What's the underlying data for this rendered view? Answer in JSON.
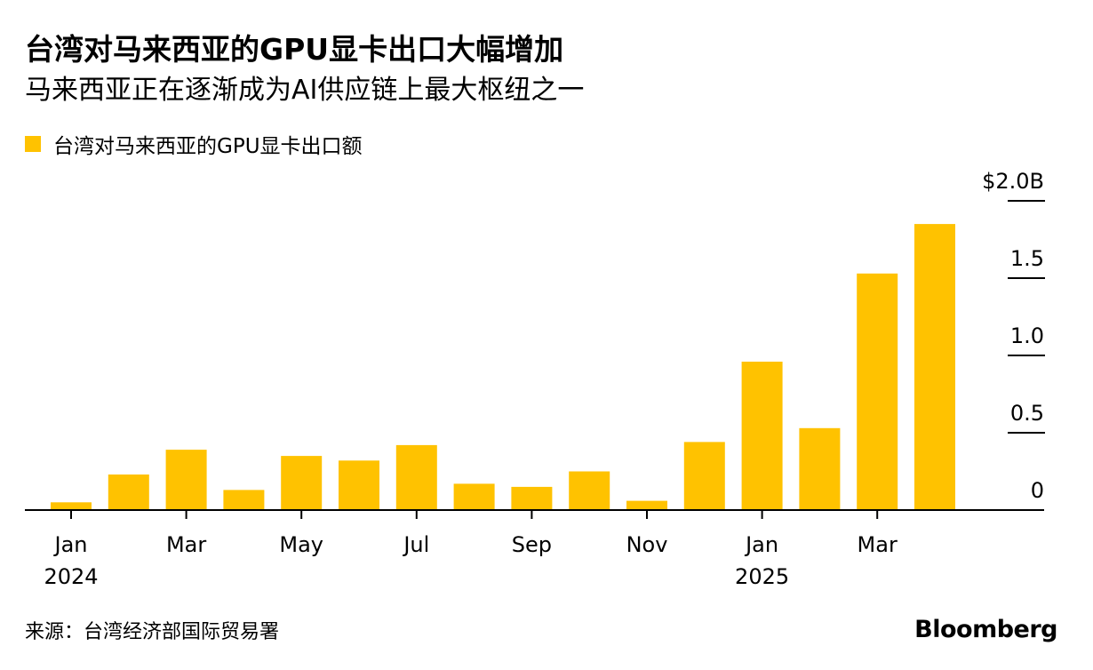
{
  "title": "台湾对马来西亚的GPU显卡出口大幅增加",
  "subtitle": "马来西亚正在逐渐成为AI供应链上最大枢纽之一",
  "source": "来源：台湾经济部国际贸易署",
  "brand": "Bloomberg",
  "colors": {
    "bar": "#FFC200",
    "text": "#000000",
    "axis": "#000000"
  },
  "chart_data": {
    "type": "bar",
    "legend_position": "top-left",
    "grid": false,
    "y_axis_position": "right",
    "ylim": [
      0,
      2.0
    ],
    "y_ticks": [
      {
        "value": 0,
        "label": "0"
      },
      {
        "value": 0.5,
        "label": "0.5"
      },
      {
        "value": 1.0,
        "label": "1.0"
      },
      {
        "value": 1.5,
        "label": "1.5"
      },
      {
        "value": 2.0,
        "label": "$2.0B"
      }
    ],
    "x_ticks": [
      {
        "index": 0,
        "label": "Jan",
        "sublabel": "2024"
      },
      {
        "index": 2,
        "label": "Mar",
        "sublabel": ""
      },
      {
        "index": 4,
        "label": "May",
        "sublabel": ""
      },
      {
        "index": 6,
        "label": "Jul",
        "sublabel": ""
      },
      {
        "index": 8,
        "label": "Sep",
        "sublabel": ""
      },
      {
        "index": 10,
        "label": "Nov",
        "sublabel": ""
      },
      {
        "index": 12,
        "label": "Jan",
        "sublabel": "2025"
      },
      {
        "index": 14,
        "label": "Mar",
        "sublabel": ""
      }
    ],
    "categories": [
      "2024-01",
      "2024-02",
      "2024-03",
      "2024-04",
      "2024-05",
      "2024-06",
      "2024-07",
      "2024-08",
      "2024-09",
      "2024-10",
      "2024-11",
      "2024-12",
      "2025-01",
      "2025-02",
      "2025-03",
      "2025-04"
    ],
    "series": [
      {
        "name": "台湾对马来西亚的GPU显卡出口额",
        "values": [
          0.05,
          0.23,
          0.39,
          0.13,
          0.35,
          0.32,
          0.42,
          0.17,
          0.15,
          0.25,
          0.06,
          0.44,
          0.96,
          0.53,
          1.53,
          1.85
        ]
      }
    ]
  }
}
